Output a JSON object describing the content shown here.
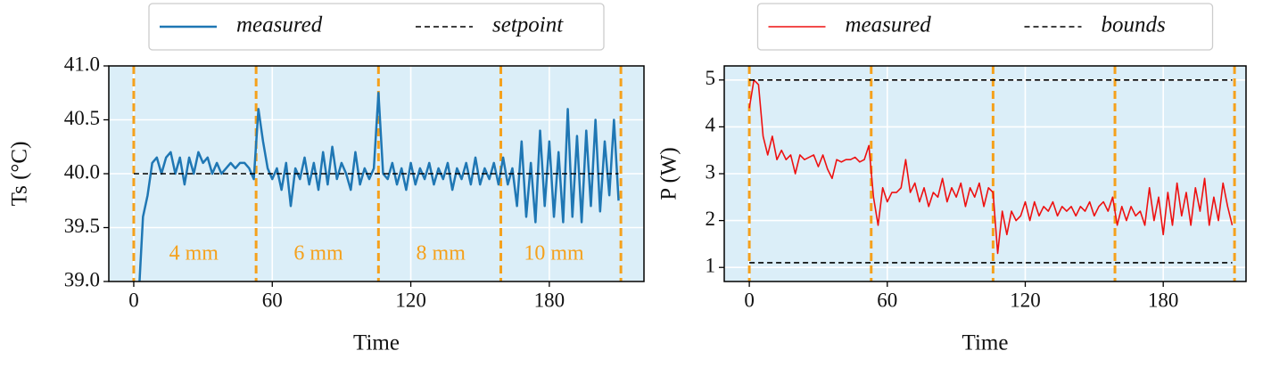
{
  "chart_data": [
    {
      "type": "line",
      "xlabel": "Time",
      "ylabel": "Ts (°C)",
      "xlim": [
        -10.8,
        221
      ],
      "ylim": [
        39,
        41
      ],
      "xticks": [
        0,
        60,
        120,
        180
      ],
      "yticks": [
        {
          "value": 39,
          "label": "39.0"
        },
        {
          "value": 39.5,
          "label": "39.5"
        },
        {
          "value": 40,
          "label": "40.0"
        },
        {
          "value": 40.5,
          "label": "40.5"
        },
        {
          "value": 41,
          "label": "41.0"
        }
      ],
      "grid": true,
      "background": "#dbeef8",
      "legend": "above",
      "x": [
        0,
        2,
        4,
        6,
        8,
        10,
        12,
        14,
        16,
        18,
        20,
        22,
        24,
        26,
        28,
        30,
        32,
        34,
        36,
        38,
        40,
        42,
        44,
        46,
        48,
        50,
        52,
        54,
        56,
        58,
        60,
        62,
        64,
        66,
        68,
        70,
        72,
        74,
        76,
        78,
        80,
        82,
        84,
        86,
        88,
        90,
        92,
        94,
        96,
        98,
        100,
        102,
        104,
        106,
        108,
        110,
        112,
        114,
        116,
        118,
        120,
        122,
        124,
        126,
        128,
        130,
        132,
        134,
        136,
        138,
        140,
        142,
        144,
        146,
        148,
        150,
        152,
        154,
        156,
        158,
        160,
        162,
        164,
        166,
        168,
        170,
        172,
        174,
        176,
        178,
        180,
        182,
        184,
        186,
        188,
        190,
        192,
        194,
        196,
        198,
        200,
        202,
        204,
        206,
        208,
        210
      ],
      "series": [
        {
          "name": "measured",
          "color": "#1f77b4",
          "linewidth": 2.5,
          "dash": false,
          "values": [
            38.2,
            38.8,
            39.6,
            39.8,
            40.1,
            40.15,
            40.0,
            40.15,
            40.2,
            40.0,
            40.15,
            39.9,
            40.15,
            40.0,
            40.2,
            40.1,
            40.15,
            40.0,
            40.1,
            40.0,
            40.05,
            40.1,
            40.05,
            40.1,
            40.1,
            40.05,
            39.95,
            40.6,
            40.3,
            40.05,
            39.95,
            40.05,
            39.85,
            40.1,
            39.7,
            40.05,
            39.95,
            40.15,
            39.9,
            40.1,
            39.85,
            40.2,
            39.9,
            40.25,
            39.95,
            40.1,
            40.0,
            39.85,
            40.2,
            39.9,
            40.05,
            39.95,
            40.05,
            40.75,
            40.0,
            39.95,
            40.1,
            39.9,
            40.05,
            39.85,
            40.1,
            39.9,
            40.05,
            39.95,
            40.1,
            39.9,
            40.05,
            39.95,
            40.1,
            39.85,
            40.05,
            39.95,
            40.1,
            39.9,
            40.15,
            39.9,
            40.05,
            39.95,
            40.1,
            39.9,
            40.15,
            39.9,
            40.05,
            39.7,
            40.3,
            39.6,
            40.1,
            39.55,
            40.4,
            39.7,
            40.3,
            39.6,
            40.2,
            39.55,
            40.6,
            39.6,
            40.35,
            39.55,
            40.4,
            39.7,
            40.5,
            39.65,
            40.3,
            39.8,
            40.5,
            39.75
          ]
        },
        {
          "name": "setpoint",
          "color": "#000000",
          "linewidth": 1.6,
          "dash": true,
          "x": [
            0,
            210
          ],
          "values": [
            40,
            40
          ]
        }
      ],
      "vlines": [
        0,
        53,
        106,
        159,
        211
      ],
      "vline_color": "#f5a11c",
      "annotations": [
        {
          "text": "4 mm",
          "x": 26,
          "y": 39.25
        },
        {
          "text": "6 mm",
          "x": 80,
          "y": 39.25
        },
        {
          "text": "8 mm",
          "x": 133,
          "y": 39.25
        },
        {
          "text": "10 mm",
          "x": 182,
          "y": 39.25
        }
      ],
      "annotation_color": "#f5a11c"
    },
    {
      "type": "line",
      "xlabel": "Time",
      "ylabel": "P (W)",
      "xlim": [
        -10.9,
        216
      ],
      "ylim": [
        0.7,
        5.3
      ],
      "xticks": [
        0,
        60,
        120,
        180
      ],
      "yticks": [
        1,
        2,
        3,
        4,
        5
      ],
      "grid": true,
      "background": "#dbeef8",
      "legend": "above",
      "x": [
        0,
        2,
        4,
        6,
        8,
        10,
        12,
        14,
        16,
        18,
        20,
        22,
        24,
        26,
        28,
        30,
        32,
        34,
        36,
        38,
        40,
        42,
        44,
        46,
        48,
        50,
        52,
        54,
        56,
        58,
        60,
        62,
        64,
        66,
        68,
        70,
        72,
        74,
        76,
        78,
        80,
        82,
        84,
        86,
        88,
        90,
        92,
        94,
        96,
        98,
        100,
        102,
        104,
        106,
        108,
        110,
        112,
        114,
        116,
        118,
        120,
        122,
        124,
        126,
        128,
        130,
        132,
        134,
        136,
        138,
        140,
        142,
        144,
        146,
        148,
        150,
        152,
        154,
        156,
        158,
        160,
        162,
        164,
        166,
        168,
        170,
        172,
        174,
        176,
        178,
        180,
        182,
        184,
        186,
        188,
        190,
        192,
        194,
        196,
        198,
        200,
        202,
        204,
        206,
        208,
        210
      ],
      "series": [
        {
          "name": "measured",
          "color": "#ee1111",
          "linewidth": 1.6,
          "dash": false,
          "values": [
            4.4,
            5.0,
            4.9,
            3.8,
            3.4,
            3.8,
            3.3,
            3.5,
            3.3,
            3.4,
            3.0,
            3.4,
            3.3,
            3.35,
            3.4,
            3.15,
            3.4,
            3.1,
            2.9,
            3.3,
            3.25,
            3.3,
            3.3,
            3.35,
            3.25,
            3.3,
            3.6,
            2.5,
            1.9,
            2.7,
            2.4,
            2.6,
            2.6,
            2.7,
            3.3,
            2.6,
            2.8,
            2.4,
            2.7,
            2.3,
            2.6,
            2.5,
            2.9,
            2.4,
            2.7,
            2.5,
            2.8,
            2.3,
            2.7,
            2.5,
            2.8,
            2.3,
            2.7,
            2.6,
            1.3,
            2.2,
            1.7,
            2.2,
            2.0,
            2.1,
            2.4,
            2.0,
            2.4,
            2.1,
            2.3,
            2.2,
            2.4,
            2.1,
            2.3,
            2.2,
            2.3,
            2.1,
            2.3,
            2.2,
            2.4,
            2.1,
            2.3,
            2.4,
            2.2,
            2.5,
            1.9,
            2.3,
            2.0,
            2.3,
            2.1,
            2.2,
            1.9,
            2.7,
            2.0,
            2.5,
            1.7,
            2.6,
            1.9,
            2.8,
            2.1,
            2.6,
            1.9,
            2.7,
            2.2,
            2.9,
            1.9,
            2.5,
            2.0,
            2.8,
            2.3,
            1.9
          ]
        },
        {
          "name": "bounds",
          "color": "#000000",
          "linewidth": 1.6,
          "dash": true,
          "x": [
            0,
            210,
            null,
            0,
            210
          ],
          "values": [
            5,
            5,
            null,
            1.1,
            1.1
          ]
        }
      ],
      "vlines": [
        0,
        53,
        106,
        159,
        211
      ],
      "vline_color": "#f5a11c",
      "annotations": [],
      "annotation_color": "#f5a11c"
    }
  ]
}
